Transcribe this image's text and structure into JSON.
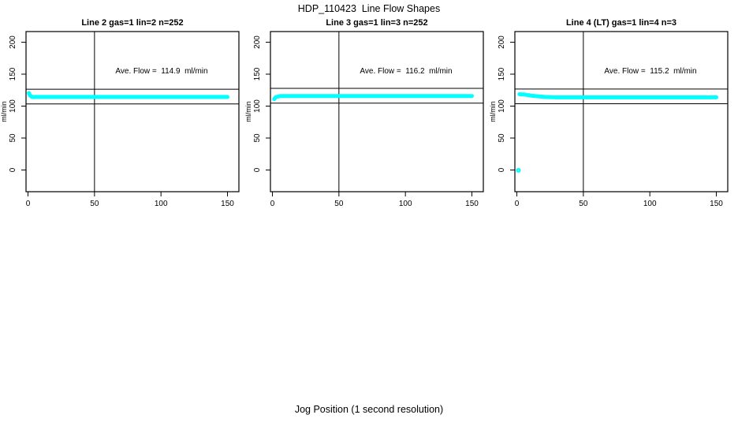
{
  "page": {
    "main_title": "HDP_110423  Line Flow Shapes",
    "x_axis_label": "Jog Position (1 second resolution)"
  },
  "colors": {
    "point_color": "#00ffff",
    "axis_color": "#000000",
    "background": "#ffffff"
  },
  "chart_data": [
    {
      "type": "scatter",
      "title": "Line 2 gas=1 lin=2 n=252",
      "annotation": "Ave. Flow =  114.9  ml/min",
      "ave_flow_ml_min": 114.9,
      "n_points": 252,
      "ylabel": "ml/min",
      "xlabel": "",
      "xticks": [
        0,
        50,
        100,
        150
      ],
      "yticks": [
        0,
        50,
        100,
        150,
        200
      ],
      "xlim": [
        -1.5,
        158.6
      ],
      "ylim": [
        -34,
        216.7
      ],
      "grid": false,
      "vline_x": 50,
      "hlines": [
        103.4,
        126.4
      ],
      "flow_profile": [
        [
          0.7,
          120.5
        ],
        [
          1.5,
          116.5
        ],
        [
          3,
          114.3
        ],
        [
          150,
          114.3
        ]
      ],
      "outlier_points": []
    },
    {
      "type": "scatter",
      "title": "Line 3 gas=1 lin=3 n=252",
      "annotation": "Ave. Flow =  116.2  ml/min",
      "ave_flow_ml_min": 116.2,
      "n_points": 252,
      "ylabel": "ml/min",
      "xlabel": "",
      "xticks": [
        0,
        50,
        100,
        150
      ],
      "yticks": [
        0,
        50,
        100,
        150,
        200
      ],
      "xlim": [
        -1.5,
        158.6
      ],
      "ylim": [
        -34,
        216.7
      ],
      "grid": false,
      "vline_x": 50,
      "hlines": [
        104.6,
        127.8
      ],
      "flow_profile": [
        [
          1.3,
          111
        ],
        [
          2.5,
          114
        ],
        [
          6,
          115.8
        ],
        [
          150,
          115.8
        ]
      ],
      "outlier_points": []
    },
    {
      "type": "scatter",
      "title": "Line 4 (LT) gas=1 lin=4 n=3",
      "annotation": "Ave. Flow =  115.2  ml/min",
      "ave_flow_ml_min": 115.2,
      "n_points": 3,
      "ylabel": "ml/min",
      "xlabel": "",
      "xticks": [
        0,
        50,
        100,
        150
      ],
      "yticks": [
        0,
        50,
        100,
        150,
        200
      ],
      "xlim": [
        -1.5,
        158.6
      ],
      "ylim": [
        -34,
        216.7
      ],
      "grid": false,
      "vline_x": 50,
      "hlines": [
        103.7,
        126.7
      ],
      "flow_profile": [
        [
          2,
          118.6
        ],
        [
          6,
          118
        ],
        [
          12,
          116
        ],
        [
          22,
          114.2
        ],
        [
          30,
          113.8
        ],
        [
          150,
          113.8
        ]
      ],
      "outlier_points": [
        [
          1.2,
          -0.5
        ]
      ]
    }
  ]
}
